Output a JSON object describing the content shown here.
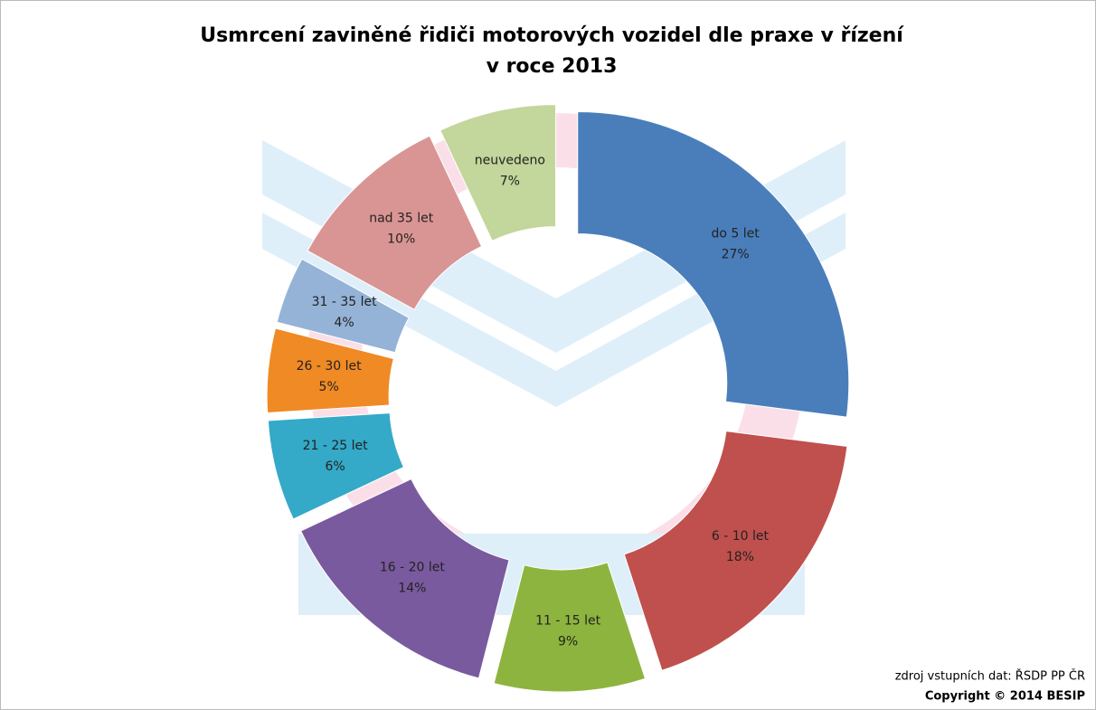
{
  "chart_data": {
    "type": "donut",
    "title": "Usmrcení zaviněné řidiči motorových vozidel dle praxe v řízení",
    "subtitle": "v roce 2013",
    "categories": [
      "do 5 let",
      "6 - 10 let",
      "11 - 15 let",
      "16 - 20 let",
      "21 - 25 let",
      "26 - 30 let",
      "31 - 35 let",
      "nad 35 let",
      "neuvedeno"
    ],
    "values": [
      27,
      18,
      9,
      14,
      6,
      5,
      4,
      10,
      7
    ],
    "value_labels": [
      "27%",
      "18%",
      "9%",
      "14%",
      "6%",
      "5%",
      "4%",
      "10%",
      "7%"
    ],
    "colors": [
      "#4a7ebb",
      "#c0504d",
      "#8db43e",
      "#7a5a9e",
      "#34a9c8",
      "#f08a24",
      "#95b3d7",
      "#d99594",
      "#c3d69b"
    ],
    "source": "zdroj vstupních dat: ŘSDP PP ČR",
    "copyright": "Copyright © 2014 BESIP"
  }
}
